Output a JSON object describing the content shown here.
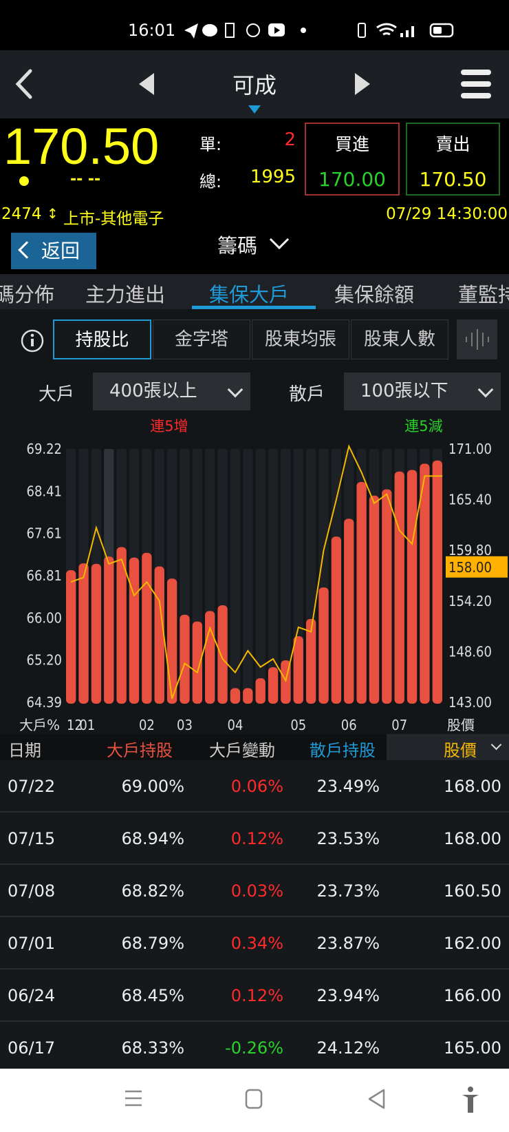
{
  "status_bar": {
    "time": "16:01",
    "icons": [
      "telegram-icon",
      "line-icon",
      "sim-icon",
      "gomaji-icon",
      "youtube-icon",
      "dot-icon",
      "vibrate-icon",
      "wifi-icon",
      "signal-icon",
      "battery-icon"
    ]
  },
  "nav": {
    "title": "可成"
  },
  "quote": {
    "price": "170.50",
    "change": "-- --",
    "unit_label": "單:",
    "unit_value": "2",
    "total_label": "總:",
    "total_value": "1995",
    "buy_label": "買進",
    "buy_price": "170.00",
    "sell_label": "賣出",
    "sell_price": "170.50",
    "code": "2474",
    "market": "上市-其他電子",
    "datetime": "07/29 14:30:00"
  },
  "toolbar": {
    "back_label": "返回",
    "section": "籌碼"
  },
  "tabs": [
    {
      "label": "碼分佈"
    },
    {
      "label": "主力進出"
    },
    {
      "label": "集保大戶",
      "active": true
    },
    {
      "label": "集保餘額"
    },
    {
      "label": "董監持"
    }
  ],
  "subtabs": [
    {
      "label": "持股比",
      "active": true
    },
    {
      "label": "金字塔"
    },
    {
      "label": "股東均張"
    },
    {
      "label": "股東人數"
    }
  ],
  "filters": {
    "big_label": "大戶",
    "big_value": "400張以上",
    "small_label": "散戶",
    "small_value": "100張以下"
  },
  "colors": {
    "bar": "#e8503f",
    "price_line": "#f5b800",
    "accent": "#1e9ad6",
    "up": "#ff2a2a",
    "down": "#2ad12a"
  },
  "chart_data": {
    "type": "bar+line",
    "annotations": {
      "left": "連5增",
      "right": "連5減"
    },
    "left_axis": {
      "label": "大戶%",
      "ylim": [
        64.39,
        69.22
      ],
      "ticks": [
        "69.22",
        "68.41",
        "67.61",
        "66.81",
        "66.00",
        "65.20",
        "64.39"
      ]
    },
    "right_axis": {
      "label": "股價",
      "ylim": [
        143.0,
        171.0
      ],
      "ticks": [
        "171.00",
        "165.40",
        "159.80",
        "154.20",
        "148.60",
        "143.00"
      ],
      "current": "158.00"
    },
    "x_tick_labels": [
      {
        "label": "12",
        "index": 0
      },
      {
        "label": "01",
        "index": 1
      },
      {
        "label": "02",
        "index": 6
      },
      {
        "label": "03",
        "index": 9
      },
      {
        "label": "04",
        "index": 13
      },
      {
        "label": "05",
        "index": 18
      },
      {
        "label": "06",
        "index": 22
      },
      {
        "label": "07",
        "index": 26
      }
    ],
    "highlight_index": 3,
    "series": [
      {
        "type": "bar",
        "axis": "left",
        "values": [
          66.91,
          67.04,
          67.03,
          67.17,
          67.35,
          67.15,
          67.24,
          66.98,
          66.75,
          66.06,
          65.93,
          66.13,
          66.24,
          64.66,
          64.66,
          64.85,
          65.06,
          65.19,
          65.65,
          65.98,
          66.58,
          67.55,
          67.89,
          68.59,
          68.33,
          68.45,
          68.79,
          68.82,
          68.94,
          69.0
        ]
      },
      {
        "type": "line",
        "axis": "right",
        "values": [
          156.3,
          156.8,
          162.3,
          158.3,
          158.8,
          154.8,
          156.3,
          154.2,
          143.4,
          147.3,
          146.3,
          151.2,
          147.8,
          146.3,
          148.7,
          146.9,
          147.8,
          145.4,
          151.3,
          150.8,
          159.8,
          165.4,
          171.3,
          168.4,
          165.0,
          166.0,
          162.0,
          160.5,
          168.0,
          168.0
        ]
      }
    ]
  },
  "table": {
    "headers": [
      "日期",
      "大戶持股",
      "大戶變動",
      "散戶持股",
      "股價"
    ],
    "rows": [
      [
        "07/22",
        "69.00%",
        "0.06%",
        "23.49%",
        "168.00"
      ],
      [
        "07/15",
        "68.94%",
        "0.12%",
        "23.53%",
        "168.00"
      ],
      [
        "07/08",
        "68.82%",
        "0.03%",
        "23.73%",
        "160.50"
      ],
      [
        "07/01",
        "68.79%",
        "0.34%",
        "23.87%",
        "162.00"
      ],
      [
        "06/24",
        "68.45%",
        "0.12%",
        "23.94%",
        "166.00"
      ],
      [
        "06/17",
        "68.33%",
        "-0.26%",
        "24.12%",
        "165.00"
      ]
    ]
  }
}
